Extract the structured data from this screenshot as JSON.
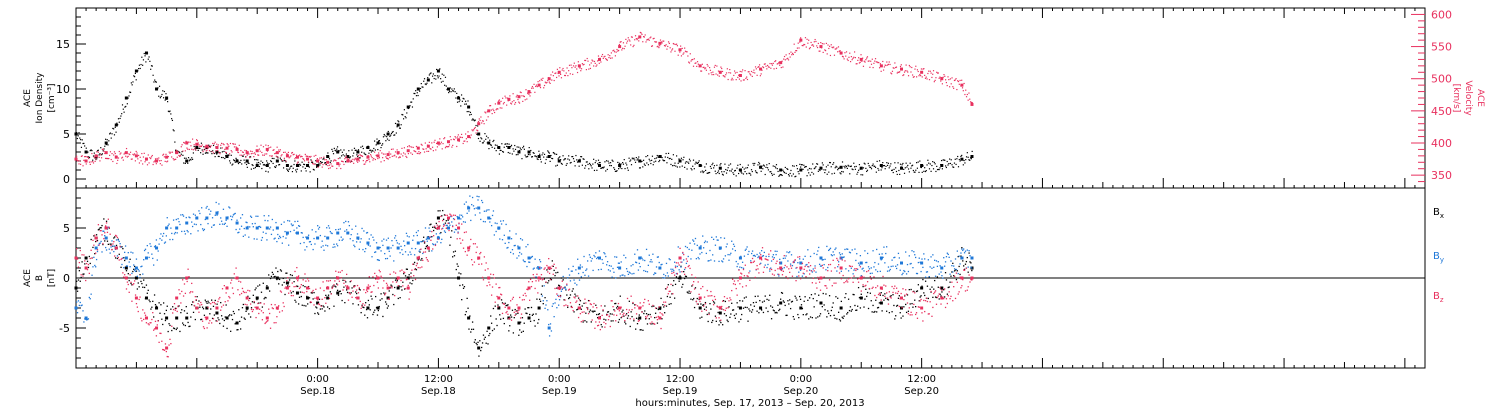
{
  "colors": {
    "black": "#000000",
    "red": "#e8305e",
    "blue": "#1f78d8",
    "axis": "#000000"
  },
  "x_axis": {
    "range_hours": [
      -24,
      110
    ],
    "start_reference": "Sep. 17, 2013 00:00",
    "ticks": [
      {
        "hours": 0,
        "time": "0:00",
        "date": "Sep.18"
      },
      {
        "hours": 12,
        "time": "12:00",
        "date": "Sep.18"
      },
      {
        "hours": 24,
        "time": "0:00",
        "date": "Sep.19"
      },
      {
        "hours": 36,
        "time": "12:00",
        "date": "Sep.19"
      },
      {
        "hours": 48,
        "time": "0:00",
        "date": "Sep.20"
      },
      {
        "hours": 60,
        "time": "12:00",
        "date": "Sep.20"
      }
    ],
    "label": "hours:minutes, Sep. 17, 2013 – Sep. 20, 2013"
  },
  "chart_data": [
    {
      "type": "scatter",
      "panel": "top",
      "ylabel_left": [
        "ACE",
        "Ion Density",
        "[cm⁻³]"
      ],
      "ylabel_right": [
        "ACE",
        "Velocity",
        "[km/s]"
      ],
      "ylim_left": [
        -1,
        19
      ],
      "yticks_left": [
        0,
        5,
        10,
        15
      ],
      "ylim_right": [
        330,
        610
      ],
      "yticks_right": [
        350,
        400,
        450,
        500,
        550,
        600
      ],
      "series": [
        {
          "axis": "left",
          "color": "black",
          "x": [
            -24,
            -23,
            -22,
            -21,
            -20,
            -19,
            -18,
            -17,
            -16,
            -15,
            -14,
            -13,
            -12,
            -11,
            -10,
            -9,
            -8,
            -7,
            -6,
            -5,
            -4,
            -3,
            -2,
            -1,
            0,
            1,
            2,
            3,
            4,
            5,
            6,
            7,
            8,
            9,
            10,
            11,
            12,
            13,
            14,
            15,
            16,
            17,
            18,
            19,
            20,
            21,
            22,
            23,
            24,
            26,
            28,
            30,
            32,
            34,
            36,
            38,
            40,
            42,
            44,
            46,
            48,
            50,
            52,
            54,
            56,
            58,
            60,
            62,
            64,
            65
          ],
          "y": [
            5,
            3,
            2.5,
            4,
            6,
            9,
            12,
            14,
            10,
            9,
            3,
            2,
            3.5,
            3.5,
            3,
            2.5,
            2,
            2,
            1.5,
            1.5,
            2,
            1.5,
            1.5,
            1.5,
            1.5,
            2.5,
            3,
            2.5,
            3,
            3.5,
            4,
            5,
            6,
            8,
            10,
            11,
            12,
            10,
            9,
            8,
            5,
            4,
            3.5,
            3.5,
            3,
            3,
            2.5,
            2.5,
            2,
            2,
            1.5,
            1.5,
            2,
            2.5,
            2,
            1.5,
            1.2,
            1,
            1.3,
            1,
            1,
            1.2,
            1.3,
            1.2,
            1.5,
            1.2,
            1.5,
            1.5,
            2.2,
            2.5
          ]
        },
        {
          "axis": "right",
          "color": "red",
          "x": [
            -24,
            -23,
            -22,
            -21,
            -20,
            -19,
            -18,
            -17,
            -16,
            -15,
            -14,
            -13,
            -12,
            -11,
            -10,
            -9,
            -8,
            -7,
            -6,
            -5,
            -4,
            -3,
            -2,
            -1,
            0,
            1,
            2,
            3,
            4,
            5,
            6,
            7,
            8,
            9,
            10,
            11,
            12,
            13,
            14,
            15,
            16,
            17,
            18,
            19,
            20,
            21,
            22,
            23,
            24,
            26,
            28,
            30,
            32,
            34,
            36,
            38,
            40,
            42,
            44,
            46,
            48,
            50,
            52,
            54,
            56,
            58,
            60,
            62,
            64,
            65
          ],
          "y": [
            375,
            372,
            380,
            385,
            378,
            385,
            380,
            375,
            372,
            378,
            385,
            400,
            398,
            395,
            393,
            392,
            390,
            385,
            388,
            390,
            385,
            380,
            378,
            375,
            372,
            370,
            368,
            372,
            375,
            378,
            380,
            382,
            385,
            388,
            392,
            395,
            400,
            402,
            405,
            410,
            430,
            450,
            462,
            468,
            472,
            480,
            490,
            500,
            510,
            520,
            530,
            550,
            565,
            555,
            545,
            520,
            510,
            505,
            515,
            525,
            560,
            550,
            540,
            530,
            520,
            515,
            510,
            500,
            490,
            460
          ]
        }
      ]
    },
    {
      "type": "scatter",
      "panel": "bottom",
      "ylabel": [
        "ACE",
        "B",
        "[nT]"
      ],
      "ylim": [
        -9,
        9
      ],
      "yticks": [
        -5,
        0,
        5
      ],
      "legend": [
        {
          "label": "B",
          "sub": "x",
          "color": "black"
        },
        {
          "label": "B",
          "sub": "y",
          "color": "blue"
        },
        {
          "label": "B",
          "sub": "z",
          "color": "red"
        }
      ],
      "series": [
        {
          "name": "Bx",
          "color": "black",
          "x": [
            -24,
            -23,
            -22,
            -21,
            -20,
            -19,
            -18,
            -17,
            -16,
            -15,
            -14,
            -13,
            -12,
            -11,
            -10,
            -9,
            -8,
            -7,
            -6,
            -5,
            -4,
            -3,
            -2,
            -1,
            0,
            1,
            2,
            3,
            4,
            5,
            6,
            7,
            8,
            9,
            10,
            11,
            12,
            13,
            14,
            15,
            16,
            17,
            18,
            19,
            20,
            21,
            22,
            23,
            24,
            26,
            28,
            30,
            32,
            34,
            36,
            38,
            40,
            42,
            44,
            46,
            48,
            50,
            52,
            54,
            56,
            58,
            60,
            62,
            64,
            65
          ],
          "y": [
            -1,
            2,
            4,
            5,
            3,
            1,
            0,
            -2,
            -3,
            -4,
            -4,
            -4,
            -3,
            -3,
            -3.5,
            -4,
            -4.5,
            -3,
            -2,
            -1,
            0,
            -0.5,
            -1.5,
            -2,
            -2.5,
            -2,
            -1.5,
            -1,
            -2,
            -3,
            -3,
            -2,
            -1,
            0,
            2,
            4,
            6,
            5,
            0,
            -4,
            -7,
            -5,
            -3,
            -4,
            -4.5,
            -4,
            -3,
            1,
            -1,
            -3,
            -4,
            -3,
            -4,
            -3,
            0,
            -3,
            -3.5,
            -3,
            -3,
            -2.5,
            -3,
            -2.5,
            -3,
            -2,
            -2.5,
            -3,
            -1,
            -1,
            2,
            1
          ]
        },
        {
          "name": "By",
          "color": "blue",
          "x": [
            -24,
            -23,
            -22,
            -21,
            -20,
            -19,
            -18,
            -17,
            -16,
            -15,
            -14,
            -13,
            -12,
            -11,
            -10,
            -9,
            -8,
            -7,
            -6,
            -5,
            -4,
            -3,
            -2,
            -1,
            0,
            1,
            2,
            3,
            4,
            5,
            6,
            7,
            8,
            9,
            10,
            11,
            12,
            13,
            14,
            15,
            16,
            17,
            18,
            19,
            20,
            21,
            22,
            23,
            24,
            26,
            28,
            30,
            32,
            34,
            36,
            38,
            40,
            42,
            44,
            46,
            48,
            50,
            52,
            54,
            56,
            58,
            60,
            62,
            64,
            65
          ],
          "y": [
            -3,
            -4,
            3,
            4,
            3,
            2,
            1,
            2,
            3,
            5,
            5,
            5.5,
            6,
            6,
            6.5,
            6,
            5.5,
            5,
            5,
            5,
            5,
            4.5,
            4.5,
            4,
            4,
            4,
            4.5,
            4.5,
            4,
            3.5,
            3,
            3,
            3,
            3.5,
            3.5,
            4,
            4,
            5,
            6,
            7,
            7,
            6,
            5,
            4,
            3,
            2,
            1,
            -5,
            -1,
            1,
            2,
            1,
            2,
            1,
            2,
            3,
            3,
            2,
            2,
            1.5,
            1.5,
            2,
            2,
            1.5,
            2,
            1.5,
            1.5,
            1,
            2,
            2
          ]
        },
        {
          "name": "Bz",
          "color": "red",
          "x": [
            -24,
            -23,
            -22,
            -21,
            -20,
            -19,
            -18,
            -17,
            -16,
            -15,
            -14,
            -13,
            -12,
            -11,
            -10,
            -9,
            -8,
            -7,
            -6,
            -5,
            -4,
            -3,
            -2,
            -1,
            0,
            1,
            2,
            3,
            4,
            5,
            6,
            7,
            8,
            9,
            10,
            11,
            12,
            13,
            14,
            15,
            16,
            17,
            18,
            19,
            20,
            21,
            22,
            23,
            24,
            26,
            28,
            30,
            32,
            34,
            36,
            38,
            40,
            42,
            44,
            46,
            48,
            50,
            52,
            54,
            56,
            58,
            60,
            62,
            64,
            65
          ],
          "y": [
            2,
            1,
            4,
            5,
            3,
            0,
            -2,
            -4,
            -5,
            -7,
            -2,
            0,
            -3,
            -4,
            -3,
            -1,
            0,
            -2,
            -3,
            -4,
            -3,
            -1,
            0,
            -1,
            -2,
            -1,
            0,
            -1,
            -2,
            -1,
            0,
            -1,
            0,
            -1,
            2,
            3,
            5,
            6,
            5,
            3,
            2,
            0,
            -2,
            -3,
            -3,
            -1,
            0,
            1,
            -1,
            -3,
            -4,
            -3,
            -3,
            -4,
            2,
            -2,
            -3,
            0,
            2,
            1,
            1,
            0,
            1,
            0,
            -1,
            -2,
            -3,
            -2,
            0,
            0
          ]
        }
      ]
    }
  ]
}
